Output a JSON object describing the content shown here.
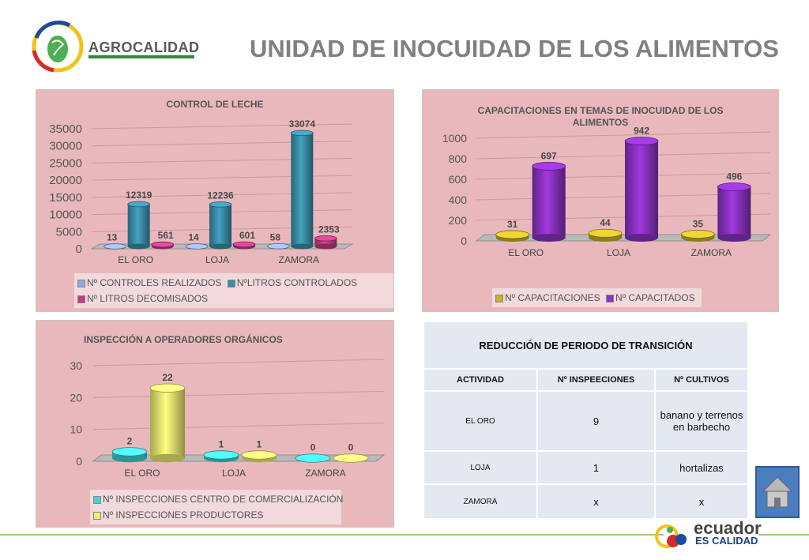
{
  "header": {
    "brand": "AGROCALIDAD",
    "title": "UNIDAD DE INOCUIDAD DE LOS ALIMENTOS"
  },
  "footer": {
    "brand_line1": "ecuador",
    "brand_line2": "ES CALIDAD"
  },
  "colors": {
    "panel_bg": "#e9b8bd",
    "teal": "#3a8ea8",
    "magenta": "#c13c86",
    "gold": "#c8b22a",
    "purple": "#8a32c2",
    "cyan": "#46d2d2",
    "yellow": "#f0f070"
  },
  "chart_data": [
    {
      "type": "bar",
      "title": "CONTROL DE LECHE",
      "categories": [
        "EL ORO",
        "LOJA",
        "ZAMORA"
      ],
      "series": [
        {
          "name": "Nº CONTROLES REALIZADOS",
          "values": [
            13,
            14,
            58
          ]
        },
        {
          "name": "NºLITROS CONTROLADOS",
          "values": [
            12319,
            12236,
            33074
          ]
        },
        {
          "name": "Nº LITROS DECOMISADOS",
          "values": [
            561,
            601,
            2353
          ]
        }
      ],
      "ylim": [
        0,
        35000
      ],
      "yticks": [
        0,
        5000,
        10000,
        15000,
        20000,
        25000,
        30000,
        35000
      ],
      "data_labels": true,
      "legend": "bottom"
    },
    {
      "type": "bar",
      "title": "CAPACITACIONES EN TEMAS DE INOCUIDAD DE LOS ALIMENTOS",
      "categories": [
        "EL ORO",
        "LOJA",
        "ZAMORA"
      ],
      "series": [
        {
          "name": "Nº CAPACITACIONES",
          "values": [
            31,
            44,
            35
          ]
        },
        {
          "name": "Nº CAPACITADOS",
          "values": [
            697,
            942,
            496
          ]
        }
      ],
      "ylim": [
        0,
        1000
      ],
      "yticks": [
        0,
        200,
        400,
        600,
        800,
        1000
      ],
      "data_labels": true,
      "legend": "bottom"
    },
    {
      "type": "bar",
      "title": "INSPECCIÓN A OPERADORES ORGÁNICOS",
      "categories": [
        "EL ORO",
        "LOJA",
        "ZAMORA"
      ],
      "series": [
        {
          "name": "Nº INSPECCIONES CENTRO DE COMERCIALIZACIÓN",
          "values": [
            2,
            1,
            0
          ]
        },
        {
          "name": "Nº INSPECCIONES PRODUCTORES",
          "values": [
            22,
            1,
            0
          ]
        }
      ],
      "ylim": [
        0,
        30
      ],
      "yticks": [
        0,
        10,
        20,
        30
      ],
      "data_labels": true,
      "legend": "bottom"
    },
    {
      "type": "table",
      "title": "REDUCCIÓN DE PERIODO DE TRANSICIÓN",
      "columns": [
        "ACTIVIDAD",
        "Nº INSPEECIONES",
        "Nº CULTIVOS"
      ],
      "rows": [
        [
          "EL ORO",
          "9",
          "banano y terrenos en barbecho"
        ],
        [
          "LOJA",
          "1",
          "hortalizas"
        ],
        [
          "ZAMORA",
          "x",
          "x"
        ]
      ]
    }
  ]
}
